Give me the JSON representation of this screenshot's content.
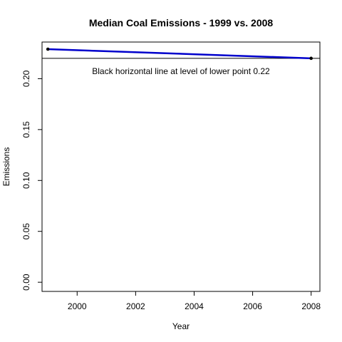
{
  "chart_data": {
    "type": "line",
    "title": "Median Coal Emissions - 1999 vs. 2008",
    "xlabel": "Year",
    "ylabel": "Emissions",
    "x": [
      1999,
      2008
    ],
    "series": [
      {
        "values": [
          0.229,
          0.22
        ],
        "color": "#0000cc"
      }
    ],
    "xlim": [
      1998.8,
      2008.3
    ],
    "ylim": [
      -0.009,
      0.236
    ],
    "xticks": [
      "2000",
      "2002",
      "2004",
      "2006",
      "2008"
    ],
    "yticks": [
      "0.00",
      "0.05",
      "0.10",
      "0.15",
      "0.20"
    ],
    "hline": {
      "value": 0.22,
      "color": "#000000"
    },
    "annotation": "Black horizontal line at level of lower point 0.22",
    "grid": false,
    "legend": "none"
  }
}
